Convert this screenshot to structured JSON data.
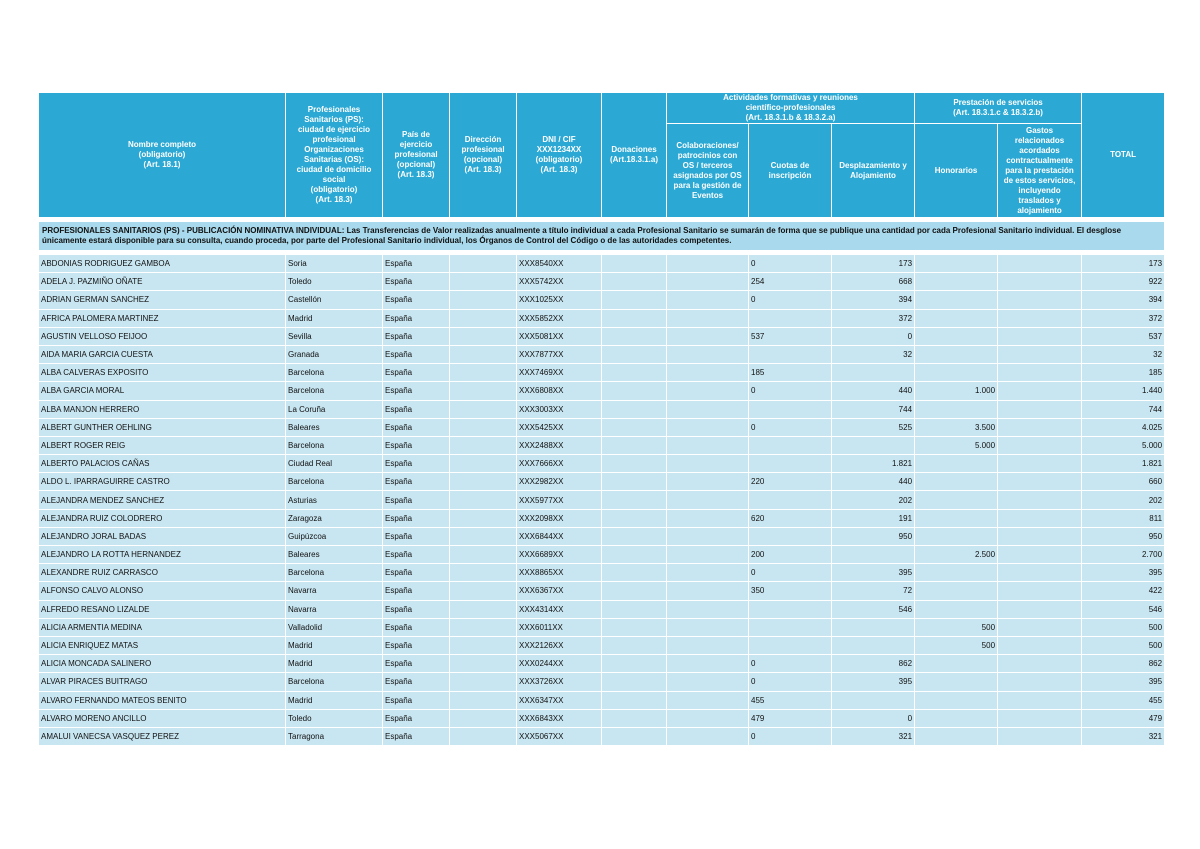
{
  "table": {
    "headers": {
      "name": "Nombre completo\n(obligatorio)\n(Art. 18.1)",
      "city": "Profesionales\nSanitarios (PS):\nciudad de ejercicio\nprofesional\nOrganizaciones\nSanitarias (OS):\nciudad de domicilio\nsocial\n(obligatorio)\n(Art. 18.3)",
      "country": "País de ejercicio\nprofesional\n(opcional)\n(Art. 18.3)",
      "address": "Dirección\nprofesional\n(opcional)\n(Art. 18.3)",
      "dni": "DNI / CIF\nXXX1234XX\n(obligatorio)\n(Art. 18.3)",
      "donations": "Donaciones\n(Art.18.3.1.a)",
      "group_activities": "Actividades formativas y reuniones\ncientífico-profesionales\n(Art. 18.3.1.b & 18.3.2.a)",
      "collaborations": "Colaboraciones/\npatrocinios con\nOS / terceros\nasignados por OS\npara la gestión de\nEventos",
      "fees": "Cuotas de\ninscripción",
      "travel": "Desplazamiento y\nAlojamiento",
      "group_services": "Prestación de servicios\n(Art. 18.3.1.c & 18.3.2.b)",
      "honoraria": "Honorarios",
      "expenses": "Gastos\nrelacionados\nacordados\ncontractualmente\npara la prestación\nde estos servicios,\nincluyendo\ntraslados y\nalojamiento",
      "total": "TOTAL"
    },
    "section": "PROFESIONALES SANITARIOS (PS) - PUBLICACIÓN NOMINATIVA INDIVIDUAL: Las Transferencias de Valor realizadas anualmente a título  individual a cada Profesional Sanitario se sumarán de forma que se publique una cantidad por cada Profesional Sanitario individual.  El desglose únicamente estará disponible para su consulta, cuando proceda, por parte del Profesional Sanitario individual, los Órganos de Control del Código o de las autoridades competentes.",
    "rows": [
      [
        "ABDONIAS RODRIGUEZ GAMBOA",
        "Soria",
        "España",
        null,
        "XXX8540XX",
        null,
        null,
        "0",
        "173",
        null,
        null,
        "173"
      ],
      [
        "ADELA J. PAZMIÑO OÑATE",
        "Toledo",
        "España",
        null,
        "XXX5742XX",
        null,
        null,
        "254",
        "668",
        null,
        null,
        "922"
      ],
      [
        "ADRIAN GERMAN SANCHEZ",
        "Castellón",
        "España",
        null,
        "XXX1025XX",
        null,
        null,
        "0",
        "394",
        null,
        null,
        "394"
      ],
      [
        "AFRICA PALOMERA MARTINEZ",
        "Madrid",
        "España",
        null,
        "XXX5852XX",
        null,
        null,
        null,
        "372",
        null,
        null,
        "372"
      ],
      [
        "AGUSTIN VELLOSO FEIJOO",
        "Sevilla",
        "España",
        null,
        "XXX5081XX",
        null,
        null,
        "537",
        "0",
        null,
        null,
        "537"
      ],
      [
        "AIDA MARIA GARCIA CUESTA",
        "Granada",
        "España",
        null,
        "XXX7877XX",
        null,
        null,
        null,
        "32",
        null,
        null,
        "32"
      ],
      [
        "ALBA CALVERAS EXPOSITO",
        "Barcelona",
        "España",
        null,
        "XXX7469XX",
        null,
        null,
        "185",
        null,
        null,
        null,
        "185"
      ],
      [
        "ALBA GARCIA MORAL",
        "Barcelona",
        "España",
        null,
        "XXX6808XX",
        null,
        null,
        "0",
        "440",
        "1.000",
        null,
        "1.440"
      ],
      [
        "ALBA MANJON HERRERO",
        "La Coruña",
        "España",
        null,
        "XXX3003XX",
        null,
        null,
        null,
        "744",
        null,
        null,
        "744"
      ],
      [
        "ALBERT GUNTHER OEHLING",
        "Baleares",
        "España",
        null,
        "XXX5425XX",
        null,
        null,
        "0",
        "525",
        "3.500",
        null,
        "4.025"
      ],
      [
        "ALBERT ROGER REIG",
        "Barcelona",
        "España",
        null,
        "XXX2488XX",
        null,
        null,
        null,
        null,
        "5.000",
        null,
        "5.000"
      ],
      [
        "ALBERTO PALACIOS CAÑAS",
        "Ciudad Real",
        "España",
        null,
        "XXX7666XX",
        null,
        null,
        null,
        "1.821",
        null,
        null,
        "1.821"
      ],
      [
        "ALDO L. IPARRAGUIRRE CASTRO",
        "Barcelona",
        "España",
        null,
        "XXX2982XX",
        null,
        null,
        "220",
        "440",
        null,
        null,
        "660"
      ],
      [
        "ALEJANDRA MENDEZ SANCHEZ",
        "Asturias",
        "España",
        null,
        "XXX5977XX",
        null,
        null,
        null,
        "202",
        null,
        null,
        "202"
      ],
      [
        "ALEJANDRA RUIZ COLODRERO",
        "Zaragoza",
        "España",
        null,
        "XXX2098XX",
        null,
        null,
        "620",
        "191",
        null,
        null,
        "811"
      ],
      [
        "ALEJANDRO JORAL BADAS",
        "Guipúzcoa",
        "España",
        null,
        "XXX6844XX",
        null,
        null,
        null,
        "950",
        null,
        null,
        "950"
      ],
      [
        "ALEJANDRO LA ROTTA HERNANDEZ",
        "Baleares",
        "España",
        null,
        "XXX6689XX",
        null,
        null,
        "200",
        null,
        "2.500",
        null,
        "2.700"
      ],
      [
        "ALEXANDRE RUIZ CARRASCO",
        "Barcelona",
        "España",
        null,
        "XXX8865XX",
        null,
        null,
        "0",
        "395",
        null,
        null,
        "395"
      ],
      [
        "ALFONSO CALVO ALONSO",
        "Navarra",
        "España",
        null,
        "XXX6367XX",
        null,
        null,
        "350",
        "72",
        null,
        null,
        "422"
      ],
      [
        "ALFREDO RESANO LIZALDE",
        "Navarra",
        "España",
        null,
        "XXX4314XX",
        null,
        null,
        null,
        "546",
        null,
        null,
        "546"
      ],
      [
        "ALICIA ARMENTIA MEDINA",
        "Valladolid",
        "España",
        null,
        "XXX6011XX",
        null,
        null,
        null,
        null,
        "500",
        null,
        "500"
      ],
      [
        "ALICIA ENRIQUEZ MATAS",
        "Madrid",
        "España",
        null,
        "XXX2126XX",
        null,
        null,
        null,
        null,
        "500",
        null,
        "500"
      ],
      [
        "ALICIA MONCADA SALINERO",
        "Madrid",
        "España",
        null,
        "XXX0244XX",
        null,
        null,
        "0",
        "862",
        null,
        null,
        "862"
      ],
      [
        "ALVAR PIRACES BUITRAGO",
        "Barcelona",
        "España",
        null,
        "XXX3726XX",
        null,
        null,
        "0",
        "395",
        null,
        null,
        "395"
      ],
      [
        "ALVARO FERNANDO MATEOS BENITO",
        "Madrid",
        "España",
        null,
        "XXX6347XX",
        null,
        null,
        "455",
        null,
        null,
        null,
        "455"
      ],
      [
        "ALVARO MORENO ANCILLO",
        "Toledo",
        "España",
        null,
        "XXX6843XX",
        null,
        null,
        "479",
        "0",
        null,
        null,
        "479"
      ],
      [
        "AMALUI VANECSA VASQUEZ PEREZ",
        "Tarragona",
        "España",
        null,
        "XXX5067XX",
        null,
        null,
        "0",
        "321",
        null,
        null,
        "321"
      ]
    ]
  }
}
